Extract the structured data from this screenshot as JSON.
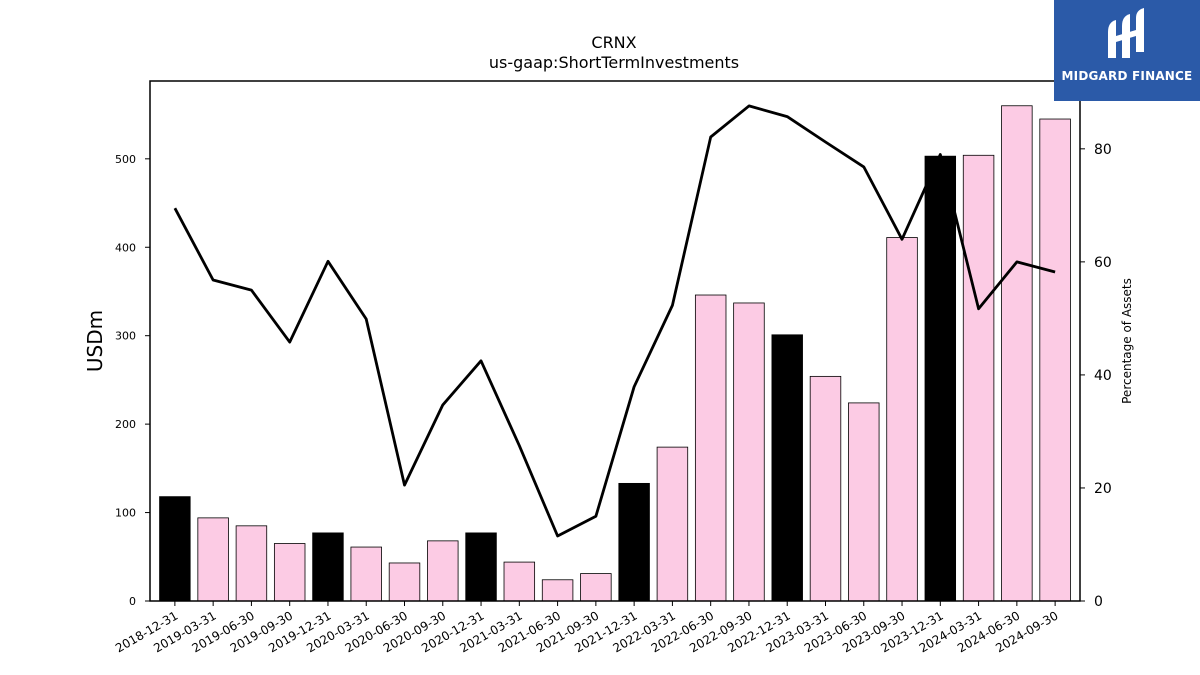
{
  "chart_data": {
    "type": "bar+line",
    "title": "CRNX",
    "subtitle": "us-gaap:ShortTermInvestments",
    "ylabel": "USDm",
    "y2label": "Percentage of Assets",
    "ylim": [
      0,
      588
    ],
    "y2lim": [
      0,
      92
    ],
    "yticks": [
      0,
      100,
      200,
      300,
      400,
      500
    ],
    "y2ticks": [
      0,
      20,
      40,
      60,
      80
    ],
    "categories": [
      "2018-12-31",
      "2019-03-31",
      "2019-06-30",
      "2019-09-30",
      "2019-12-31",
      "2020-03-31",
      "2020-06-30",
      "2020-09-30",
      "2020-12-31",
      "2021-03-31",
      "2021-06-30",
      "2021-09-30",
      "2021-12-31",
      "2022-03-31",
      "2022-06-30",
      "2022-09-30",
      "2022-12-31",
      "2023-03-31",
      "2023-06-30",
      "2023-09-30",
      "2023-12-31",
      "2024-03-31",
      "2024-06-30",
      "2024-09-30"
    ],
    "series": [
      {
        "type": "bar",
        "axis": "left",
        "values": [
          118,
          94,
          85,
          65,
          77,
          61,
          43,
          68,
          77,
          44,
          24,
          31,
          133,
          174,
          346,
          337,
          301,
          254,
          224,
          411,
          503,
          504,
          560,
          545
        ],
        "colors": [
          "#000000",
          "#fccbe4",
          "#fccbe4",
          "#fccbe4",
          "#000000",
          "#fccbe4",
          "#fccbe4",
          "#fccbe4",
          "#000000",
          "#fccbe4",
          "#fccbe4",
          "#fccbe4",
          "#000000",
          "#fccbe4",
          "#fccbe4",
          "#fccbe4",
          "#000000",
          "#fccbe4",
          "#fccbe4",
          "#fccbe4",
          "#000000",
          "#fccbe4",
          "#fccbe4",
          "#fccbe4"
        ]
      },
      {
        "type": "line",
        "axis": "right",
        "color": "#000000",
        "values": [
          69.5,
          56.8,
          55.0,
          45.8,
          60.1,
          49.9,
          20.5,
          34.7,
          42.5,
          27.5,
          11.5,
          15.0,
          37.9,
          52.3,
          82.1,
          87.6,
          85.7,
          81.2,
          76.8,
          64.0,
          79.0,
          51.7,
          60.0,
          58.2
        ]
      }
    ]
  },
  "logo": {
    "text": "MIDGARD FINANCE",
    "color": "#2b5aa8"
  }
}
